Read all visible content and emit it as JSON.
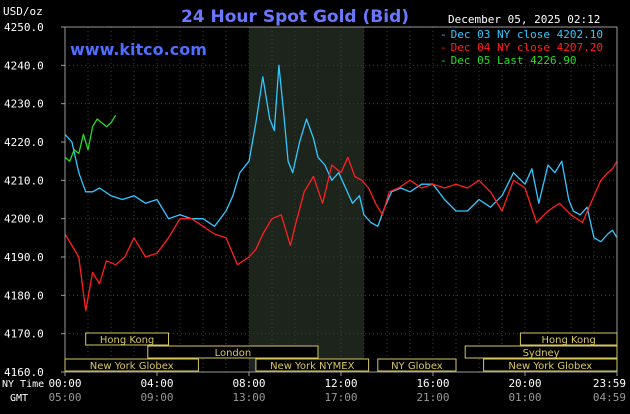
{
  "chart_data": {
    "type": "line",
    "title": "24 Hour Spot Gold (Bid)",
    "website": "www.kitco.com",
    "timestamp": "December 05, 2025 02:12",
    "ylabel": "USD/oz",
    "ylim": [
      4160,
      4250
    ],
    "yticks": [
      "4250.0",
      "4240.0",
      "4230.0",
      "4220.0",
      "4210.0",
      "4200.0",
      "4190.0",
      "4180.0",
      "4170.0",
      "4160.0"
    ],
    "xlim": [
      0,
      24
    ],
    "xticks_ny": [
      "00:00",
      "04:00",
      "08:00",
      "12:00",
      "16:00",
      "20:00",
      "23:59"
    ],
    "xticks_gmt": [
      "05:00",
      "09:00",
      "13:00",
      "17:00",
      "21:00",
      "01:00",
      "04:59"
    ],
    "row_label_ny": "NY Time",
    "row_label_gmt": "GMT",
    "legend_position": "top-right",
    "grid": true,
    "legend": [
      {
        "label": "Dec 03 NY close 4202.10",
        "color": "#33c7ff"
      },
      {
        "label": "Dec 04 NY close 4207.20",
        "color": "#ff2020"
      },
      {
        "label": "Dec 05 Last 4226.90",
        "color": "#22dd22"
      }
    ],
    "highlight_range": [
      8.0,
      13.0
    ],
    "sessions": [
      {
        "name": "Hong Kong",
        "start": 0.9,
        "end": 4.5,
        "row": 0
      },
      {
        "name": "London",
        "start": 3.6,
        "end": 11.0,
        "row": 1
      },
      {
        "name": "New York Globex",
        "start": 0.0,
        "end": 5.8,
        "row": 2
      },
      {
        "name": "New York NYMEX",
        "start": 8.3,
        "end": 13.2,
        "row": 2
      },
      {
        "name": "NY Globex",
        "start": 13.6,
        "end": 17.0,
        "row": 2
      },
      {
        "name": "Hong Kong",
        "start": 19.8,
        "end": 24.0,
        "row": 0
      },
      {
        "name": "Sydney",
        "start": 17.4,
        "end": 24.0,
        "row": 1
      },
      {
        "name": "New York Globex",
        "start": 18.2,
        "end": 24.0,
        "row": 2
      }
    ],
    "series": [
      {
        "name": "Dec 03",
        "color": "#33c7ff",
        "x": [
          0,
          0.3,
          0.6,
          0.9,
          1.2,
          1.5,
          2.0,
          2.5,
          3.0,
          3.5,
          4.0,
          4.5,
          5.0,
          5.5,
          6.0,
          6.5,
          7.0,
          7.3,
          7.6,
          8.0,
          8.3,
          8.6,
          8.9,
          9.1,
          9.3,
          9.5,
          9.7,
          9.9,
          10.2,
          10.5,
          10.8,
          11.0,
          11.3,
          11.6,
          11.9,
          12.2,
          12.5,
          12.8,
          13.0,
          13.3,
          13.6,
          13.9,
          14.2,
          14.6,
          15.0,
          15.5,
          16.0,
          16.5,
          17.0,
          17.5,
          18.0,
          18.5,
          19.0,
          19.5,
          20.0,
          20.3,
          20.6,
          21.0,
          21.3,
          21.6,
          21.9,
          22.1,
          22.4,
          22.7,
          23.0,
          23.3,
          23.6,
          23.8,
          24.0
        ],
        "y": [
          4222,
          4220,
          4212,
          4207,
          4207,
          4208,
          4206,
          4205,
          4206,
          4204,
          4205,
          4200,
          4201,
          4200,
          4200,
          4198,
          4202,
          4206,
          4212,
          4215,
          4225,
          4237,
          4226,
          4223,
          4240,
          4228,
          4215,
          4212,
          4220,
          4226,
          4221,
          4216,
          4214,
          4210,
          4212,
          4208,
          4204,
          4206,
          4201,
          4199,
          4198,
          4203,
          4207,
          4208,
          4207,
          4209,
          4209,
          4205,
          4202,
          4202,
          4205,
          4203,
          4206,
          4212,
          4209,
          4213,
          4204,
          4214,
          4212,
          4215,
          4205,
          4202,
          4201,
          4203,
          4195,
          4194,
          4196,
          4197,
          4195
        ]
      },
      {
        "name": "Dec 04",
        "color": "#ff2020",
        "x": [
          0,
          0.3,
          0.6,
          0.9,
          1.2,
          1.5,
          1.8,
          2.2,
          2.6,
          3.0,
          3.5,
          4.0,
          4.5,
          5.0,
          5.5,
          6.0,
          6.5,
          7.0,
          7.5,
          8.0,
          8.3,
          8.6,
          9.0,
          9.4,
          9.8,
          10.0,
          10.4,
          10.8,
          11.2,
          11.6,
          12.0,
          12.3,
          12.6,
          12.9,
          13.2,
          13.5,
          13.8,
          14.1,
          14.5,
          15.0,
          15.5,
          16.0,
          16.5,
          17.0,
          17.5,
          18.0,
          18.5,
          19.0,
          19.5,
          20.0,
          20.5,
          21.0,
          21.5,
          22.0,
          22.5,
          23.0,
          23.3,
          23.6,
          23.8,
          24.0
        ],
        "y": [
          4196,
          4193,
          4190,
          4176,
          4186,
          4183,
          4189,
          4188,
          4190,
          4195,
          4190,
          4191,
          4195,
          4200,
          4200,
          4198,
          4196,
          4195,
          4188,
          4190,
          4192,
          4196,
          4200,
          4201,
          4193,
          4198,
          4207,
          4211,
          4204,
          4214,
          4212,
          4216,
          4211,
          4210,
          4208,
          4204,
          4201,
          4207,
          4208,
          4210,
          4208,
          4209,
          4208,
          4209,
          4208,
          4210,
          4207,
          4202,
          4210,
          4208,
          4199,
          4202,
          4204,
          4201,
          4199,
          4206,
          4210,
          4212,
          4213,
          4215
        ]
      },
      {
        "name": "Dec 05",
        "color": "#22dd22",
        "x": [
          0,
          0.2,
          0.4,
          0.6,
          0.8,
          1.0,
          1.2,
          1.4,
          1.6,
          1.8,
          2.0,
          2.2
        ],
        "y": [
          4216,
          4215,
          4218,
          4217,
          4222,
          4218,
          4224,
          4226,
          4225,
          4224,
          4225,
          4227
        ]
      }
    ]
  }
}
